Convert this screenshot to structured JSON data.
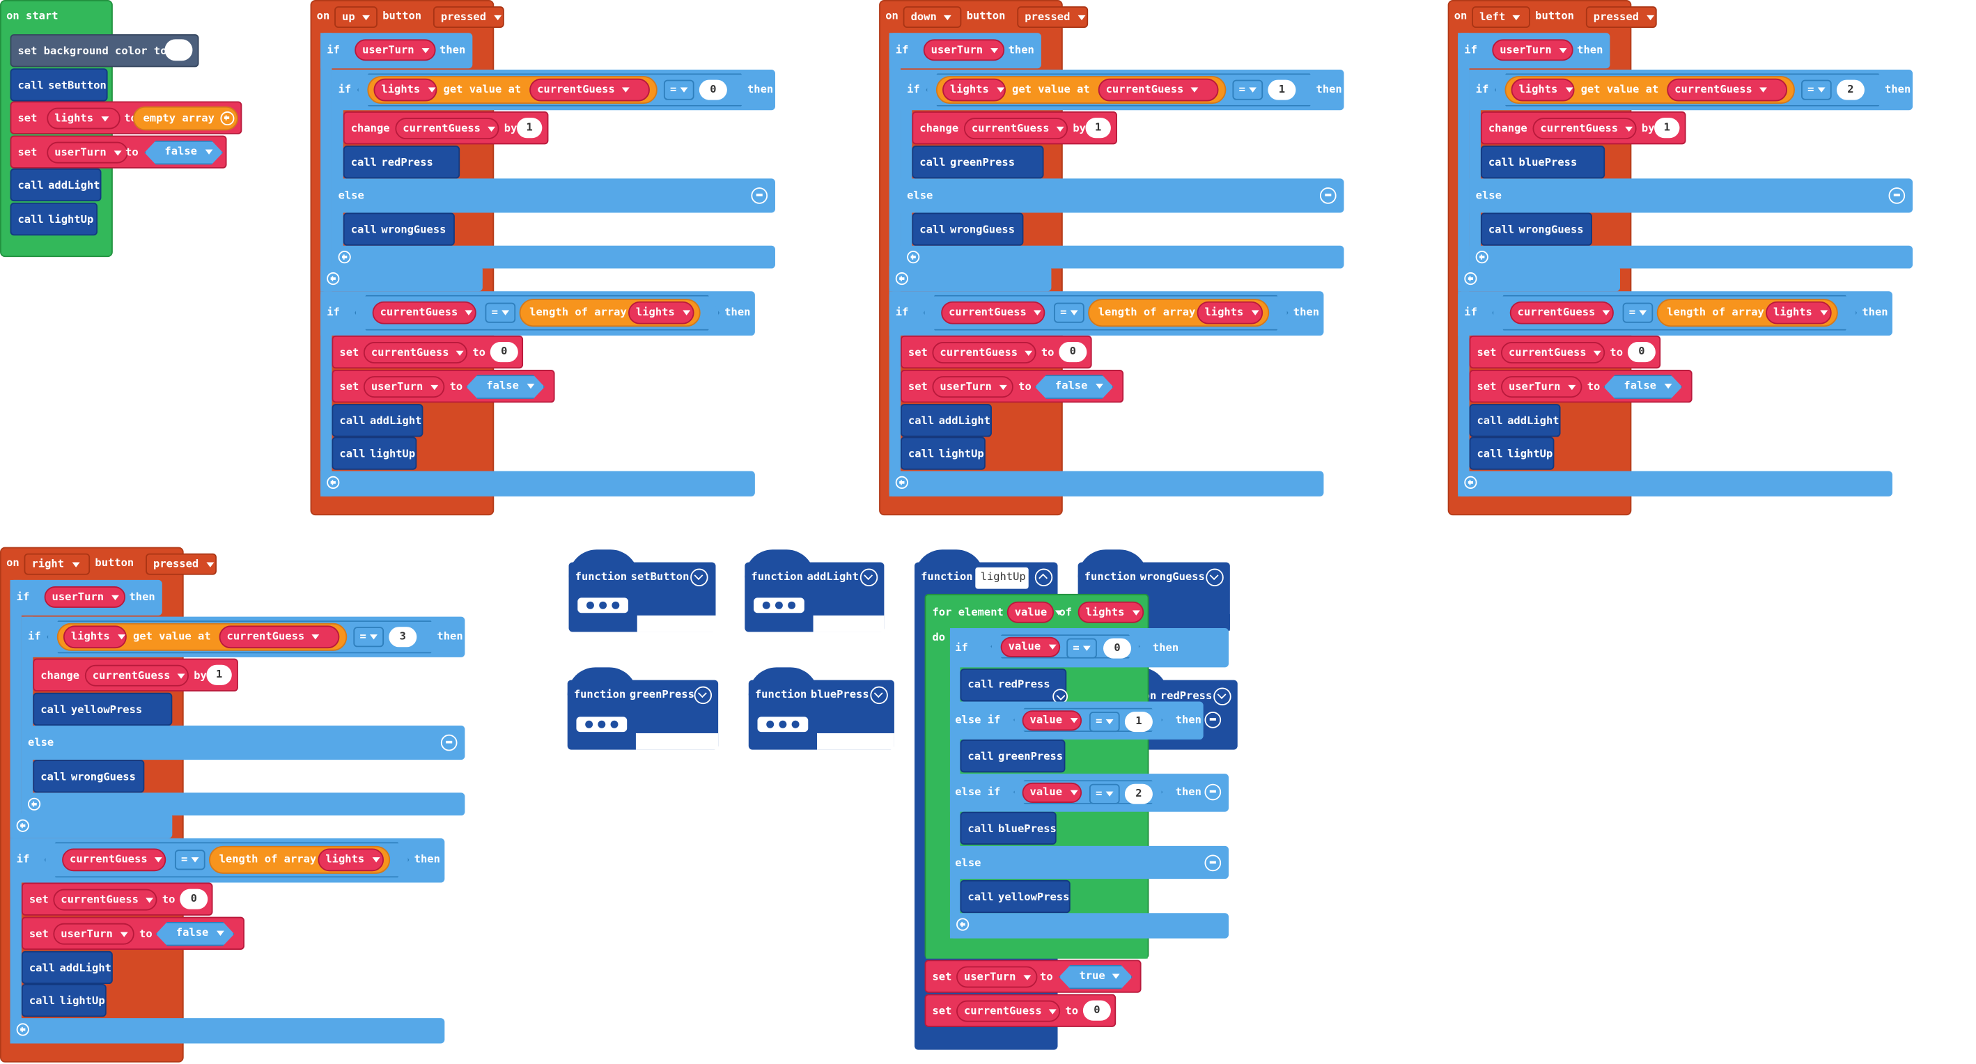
{
  "colors": {
    "events": "#d44a24",
    "logic": "#56a8e8",
    "variables": "#e8345a",
    "functions": "#1e4ea0",
    "arrays": "#f7941d",
    "loops": "#33b85a",
    "basic": "#4c5f7c"
  },
  "keywords": {
    "on_start": "on start",
    "on": "on",
    "button": "button",
    "pressed": "pressed",
    "if": "if",
    "then": "then",
    "else": "else",
    "else_if": "else if",
    "set": "set",
    "to": "to",
    "change": "change",
    "by": "by",
    "call": "call",
    "get_value_at": "get value at",
    "length_of_array": "length of array",
    "empty_array": "empty array",
    "set_bg_color": "set background color to",
    "function": "function",
    "for_element": "for element",
    "of": "of",
    "do": "do",
    "eq": "="
  },
  "vars": {
    "lights": "lights",
    "userTurn": "userTurn",
    "currentGuess": "currentGuess",
    "value": "value"
  },
  "values": {
    "false": "false",
    "true": "true",
    "zero": "0",
    "one": "1"
  },
  "calls": {
    "setButton": "setButton",
    "addLight": "addLight",
    "lightUp": "lightUp",
    "wrongGuess": "wrongGuess",
    "redPress": "redPress",
    "greenPress": "greenPress",
    "bluePress": "bluePress",
    "yellowPress": "yellowPress"
  },
  "handlers": [
    {
      "button": "up",
      "index": "0",
      "press": "redPress"
    },
    {
      "button": "down",
      "index": "1",
      "press": "greenPress"
    },
    {
      "button": "left",
      "index": "2",
      "press": "bluePress"
    },
    {
      "button": "right",
      "index": "3",
      "press": "yellowPress"
    }
  ],
  "functions": {
    "setButton": "setButton",
    "addLight": "addLight",
    "greenPress": "greenPress",
    "bluePress": "bluePress",
    "lightUp": "lightUp",
    "wrongGuess": "wrongGuess",
    "redPress": "redPress"
  },
  "lightup_branches": [
    {
      "cmp": "0",
      "press": "redPress"
    },
    {
      "cmp": "1",
      "press": "greenPress"
    },
    {
      "cmp": "2",
      "press": "bluePress"
    },
    {
      "press": "yellowPress"
    }
  ]
}
